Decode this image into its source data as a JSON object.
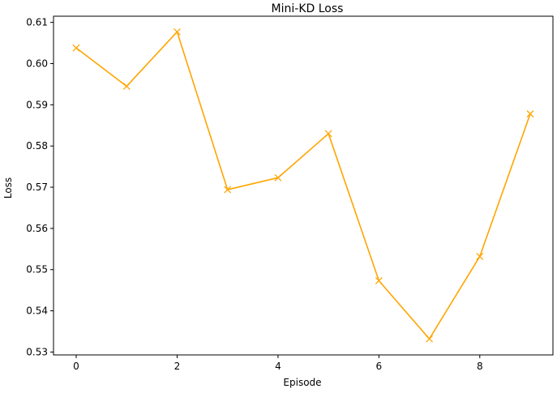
{
  "chart_data": {
    "type": "line",
    "title": "Mini-KD Loss",
    "xlabel": "Episode",
    "ylabel": "Loss",
    "x": [
      0,
      1,
      2,
      3,
      4,
      5,
      6,
      7,
      8,
      9
    ],
    "series": [
      {
        "values": [
          0.6038,
          0.5945,
          0.6077,
          0.5694,
          0.5723,
          0.583,
          0.5473,
          0.5332,
          0.5532,
          0.5878
        ],
        "color": "#FFA500",
        "marker": "x"
      }
    ],
    "xticks": [
      0,
      2,
      4,
      6,
      8
    ],
    "xtick_labels": [
      "0",
      "2",
      "4",
      "6",
      "8"
    ],
    "yticks": [
      0.53,
      0.54,
      0.55,
      0.56,
      0.57,
      0.58,
      0.59,
      0.6,
      0.61
    ],
    "ytick_labels": [
      "0.53",
      "0.54",
      "0.55",
      "0.56",
      "0.57",
      "0.58",
      "0.59",
      "0.60",
      "0.61"
    ],
    "xlim": [
      -0.45,
      9.45
    ],
    "ylim": [
      0.5293,
      0.6115
    ],
    "grid": false,
    "legend": "none"
  }
}
